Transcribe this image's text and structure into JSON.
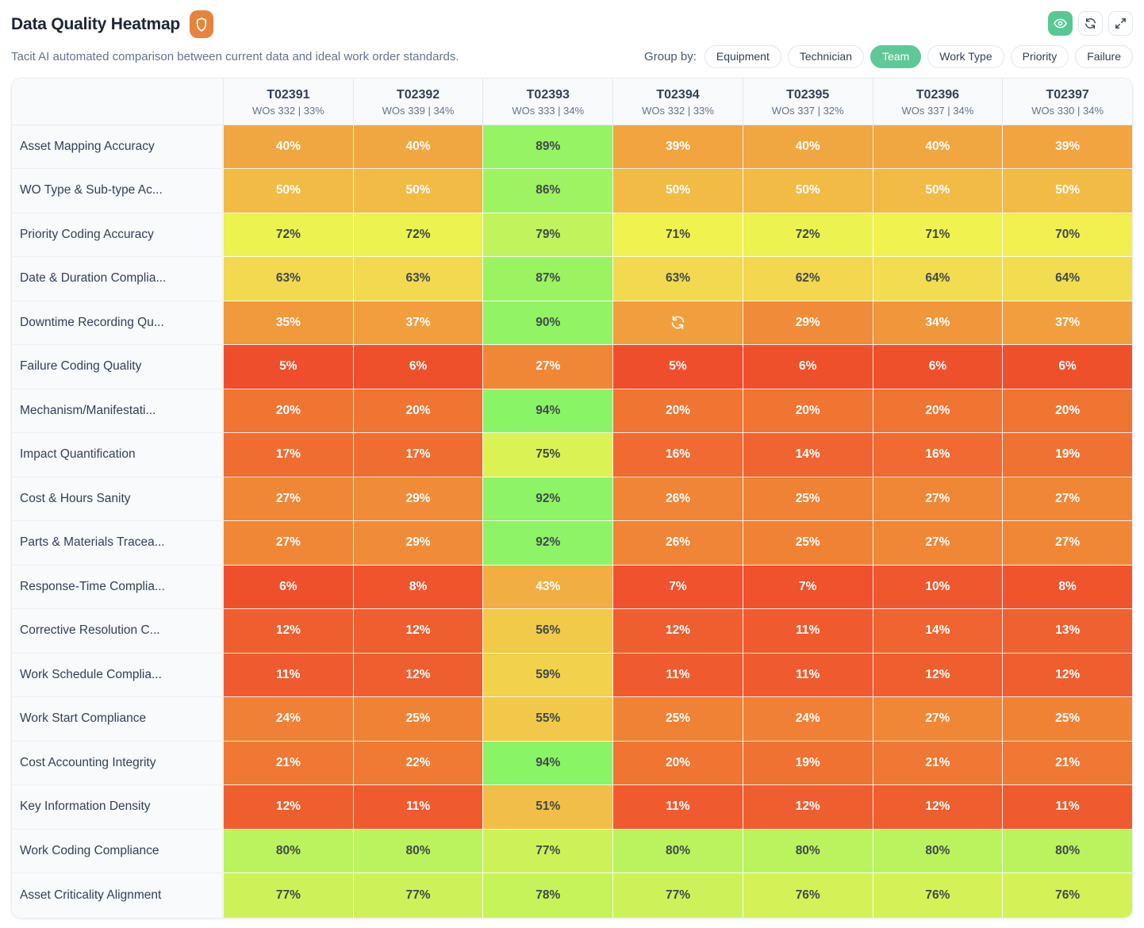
{
  "header": {
    "title": "Data Quality Heatmap",
    "subtitle": "Tacit AI automated comparison between current data and ideal work order standards.",
    "badge": {
      "icon": "shield-icon",
      "color": "#E8833C"
    },
    "toolbar": {
      "active_color": "#57C893",
      "buttons": [
        {
          "icon": "eye-icon",
          "active": true
        },
        {
          "icon": "refresh-icon",
          "active": false
        },
        {
          "icon": "expand-icon",
          "active": false
        }
      ]
    },
    "group_by": {
      "label": "Group by:",
      "active_color": "#5EC997",
      "options": [
        {
          "label": "Equipment",
          "active": false
        },
        {
          "label": "Technician",
          "active": false
        },
        {
          "label": "Team",
          "active": true
        },
        {
          "label": "Work Type",
          "active": false
        },
        {
          "label": "Priority",
          "active": false
        },
        {
          "label": "Failure",
          "active": false
        }
      ]
    }
  },
  "chart_data": {
    "type": "heatmap",
    "value_unit": "%",
    "color_scale": {
      "domain": [
        0,
        100
      ],
      "low": "#E8472F",
      "mid": "#F2EE4E",
      "high": "#82F468"
    },
    "columns": [
      {
        "id": "T02391",
        "meta": "WOs 332 | 33%"
      },
      {
        "id": "T02392",
        "meta": "WOs 339 | 34%"
      },
      {
        "id": "T02393",
        "meta": "WOs 333 | 34%"
      },
      {
        "id": "T02394",
        "meta": "WOs 332 | 33%"
      },
      {
        "id": "T02395",
        "meta": "WOs 337 | 32%"
      },
      {
        "id": "T02396",
        "meta": "WOs 337 | 34%"
      },
      {
        "id": "T02397",
        "meta": "WOs 330 | 34%"
      }
    ],
    "rows": [
      {
        "label": "Asset Mapping Accuracy",
        "values": [
          40,
          40,
          89,
          39,
          40,
          40,
          39
        ]
      },
      {
        "label": "WO Type & Sub-type Ac...",
        "values": [
          50,
          50,
          86,
          50,
          50,
          50,
          50
        ]
      },
      {
        "label": "Priority Coding Accuracy",
        "values": [
          72,
          72,
          79,
          71,
          72,
          71,
          70
        ]
      },
      {
        "label": "Date & Duration Complia...",
        "values": [
          63,
          63,
          87,
          63,
          62,
          64,
          64
        ]
      },
      {
        "label": "Downtime Recording Qu...",
        "values": [
          35,
          37,
          90,
          null,
          29,
          34,
          37
        ],
        "loading_column": "T02394"
      },
      {
        "label": "Failure Coding Quality",
        "values": [
          5,
          6,
          27,
          5,
          6,
          6,
          6
        ]
      },
      {
        "label": "Mechanism/Manifestati...",
        "values": [
          20,
          20,
          94,
          20,
          20,
          20,
          20
        ]
      },
      {
        "label": "Impact Quantification",
        "values": [
          17,
          17,
          75,
          16,
          14,
          16,
          19
        ]
      },
      {
        "label": "Cost & Hours Sanity",
        "values": [
          27,
          29,
          92,
          26,
          25,
          27,
          27
        ]
      },
      {
        "label": "Parts & Materials Tracea...",
        "values": [
          27,
          29,
          92,
          26,
          25,
          27,
          27
        ]
      },
      {
        "label": "Response-Time Complia...",
        "values": [
          6,
          8,
          43,
          7,
          7,
          10,
          8
        ]
      },
      {
        "label": "Corrective Resolution C...",
        "values": [
          12,
          12,
          56,
          12,
          11,
          14,
          13
        ]
      },
      {
        "label": "Work Schedule Complia...",
        "values": [
          11,
          12,
          59,
          11,
          11,
          12,
          12
        ]
      },
      {
        "label": "Work Start Compliance",
        "values": [
          24,
          25,
          55,
          25,
          24,
          27,
          25
        ]
      },
      {
        "label": "Cost Accounting Integrity",
        "values": [
          21,
          22,
          94,
          20,
          19,
          21,
          21
        ]
      },
      {
        "label": "Key Information Density",
        "values": [
          12,
          11,
          51,
          11,
          12,
          12,
          11
        ]
      },
      {
        "label": "Work Coding Compliance",
        "values": [
          80,
          80,
          77,
          80,
          80,
          80,
          80
        ]
      },
      {
        "label": "Asset Criticality Alignment",
        "values": [
          77,
          77,
          78,
          77,
          76,
          76,
          76
        ]
      }
    ]
  }
}
